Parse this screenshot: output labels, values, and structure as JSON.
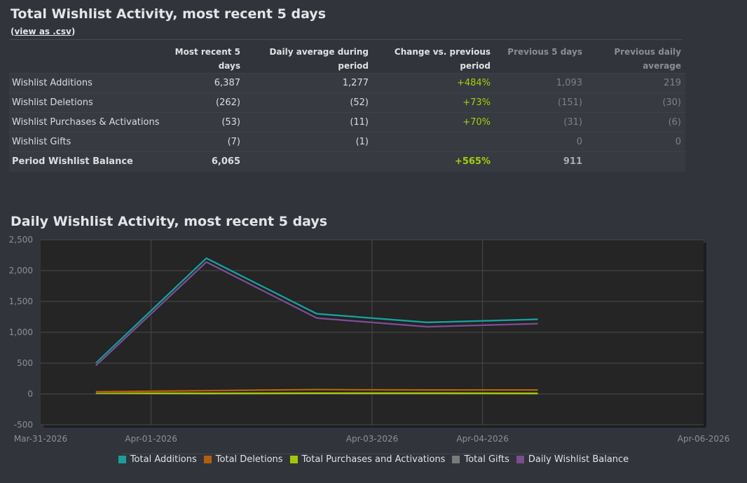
{
  "summary": {
    "title": "Total Wishlist Activity, most recent 5 days",
    "csv_prefix": "(",
    "csv_link": "view as .csv",
    "csv_suffix": ")",
    "headers": {
      "col1": "Most recent 5 days",
      "col2": "Daily average during period",
      "col3": "Change vs. previous period",
      "col4": "Previous 5 days",
      "col5a": "Previous daily",
      "col5b": "average"
    },
    "rows": [
      {
        "label": "Wishlist Additions",
        "recent": "6,387",
        "daily": "1,277",
        "change": "+484%",
        "prev": "1,093",
        "prev_daily": "219"
      },
      {
        "label": "Wishlist Deletions",
        "recent": "(262)",
        "daily": "(52)",
        "change": "+73%",
        "prev": "(151)",
        "prev_daily": "(30)"
      },
      {
        "label": "Wishlist Purchases & Activations",
        "recent": "(53)",
        "daily": "(11)",
        "change": "+70%",
        "prev": "(31)",
        "prev_daily": "(6)"
      },
      {
        "label": "Wishlist Gifts",
        "recent": "(7)",
        "daily": "(1)",
        "change": "",
        "prev": "0",
        "prev_daily": "0"
      },
      {
        "label": "Period Wishlist Balance",
        "recent": "6,065",
        "daily": "",
        "change": "+565%",
        "prev": "911",
        "prev_daily": ""
      }
    ]
  },
  "chart_section": {
    "title": "Daily Wishlist Activity, most recent 5 days"
  },
  "chart_data": {
    "type": "line",
    "title": "Daily Wishlist Activity, most recent 5 days",
    "xlabel": "",
    "ylabel": "",
    "xlim": [
      "2026-03-31",
      "2026-04-06"
    ],
    "ylim": [
      -500,
      2500
    ],
    "y_ticks": [
      -500,
      0,
      500,
      1000,
      1500,
      2000,
      2500
    ],
    "y_tick_labels": [
      "-500",
      "0",
      "500",
      "1,000",
      "1,500",
      "2,000",
      "2,500"
    ],
    "x_tick_labels": [
      "Mar-31-2026",
      "Apr-01-2026",
      "Apr-03-2026",
      "Apr-04-2026",
      "Apr-06-2026"
    ],
    "x_tick_dates": [
      "2026-03-31",
      "2026-04-01",
      "2026-04-03",
      "2026-04-04",
      "2026-04-06"
    ],
    "grid": true,
    "legend_position": "bottom",
    "x": [
      "2026-03-31",
      "2026-04-01",
      "2026-04-02",
      "2026-04-03",
      "2026-04-04"
    ],
    "series": [
      {
        "name": "Total Additions",
        "color": "#1a9e9a",
        "values": [
          500,
          2200,
          1300,
          1160,
          1210
        ]
      },
      {
        "name": "Total Deletions",
        "color": "#b0600c",
        "values": [
          35,
          55,
          70,
          65,
          65
        ]
      },
      {
        "name": "Total Purchases and Activations",
        "color": "#a4c60a",
        "values": [
          15,
          10,
          12,
          12,
          10
        ]
      },
      {
        "name": "Total Gifts",
        "color": "#7a7a7a",
        "values": [
          2,
          1,
          2,
          1,
          1
        ]
      },
      {
        "name": "Daily Wishlist Balance",
        "color": "#7a4e8e",
        "values": [
          460,
          2140,
          1230,
          1090,
          1140
        ]
      }
    ]
  }
}
